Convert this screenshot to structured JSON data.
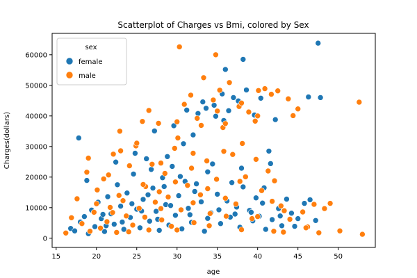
{
  "chart_data": {
    "type": "scatter",
    "title": "Scatterplot of Charges vs Bmi, colored by Sex",
    "xlabel": "age",
    "ylabel": "Charges(dollars)",
    "xlim": [
      14.5,
      54.6
    ],
    "ylim": [
      -3000,
      67000
    ],
    "xticks": [
      15,
      20,
      25,
      30,
      35,
      40,
      45,
      50
    ],
    "yticks": [
      0,
      10000,
      20000,
      30000,
      40000,
      50000,
      60000
    ],
    "legend": {
      "title": "sex",
      "position": "top-left"
    },
    "series": [
      {
        "name": "female",
        "color": "#1f77b4",
        "points": [
          [
            17.8,
            32800
          ],
          [
            47.5,
            63800
          ],
          [
            36.0,
            55200
          ],
          [
            38.2,
            58500
          ],
          [
            46.3,
            46200
          ],
          [
            47.8,
            46000
          ],
          [
            16.8,
            3200
          ],
          [
            17.3,
            2400
          ],
          [
            18.0,
            5300
          ],
          [
            18.5,
            7100
          ],
          [
            19.0,
            1500
          ],
          [
            19.4,
            9200
          ],
          [
            19.8,
            3800
          ],
          [
            20.2,
            11800
          ],
          [
            20.6,
            6400
          ],
          [
            21.0,
            2200
          ],
          [
            21.4,
            13600
          ],
          [
            21.8,
            8000
          ],
          [
            22.2,
            4600
          ],
          [
            22.6,
            17500
          ],
          [
            23.0,
            10500
          ],
          [
            23.4,
            2900
          ],
          [
            23.8,
            14800
          ],
          [
            24.2,
            6800
          ],
          [
            24.6,
            21000
          ],
          [
            25.0,
            9500
          ],
          [
            25.4,
            3400
          ],
          [
            25.8,
            12700
          ],
          [
            26.2,
            26000
          ],
          [
            26.6,
            5600
          ],
          [
            27.0,
            16400
          ],
          [
            27.4,
            8800
          ],
          [
            27.8,
            2600
          ],
          [
            28.2,
            19800
          ],
          [
            28.6,
            11000
          ],
          [
            29.0,
            4300
          ],
          [
            29.4,
            23500
          ],
          [
            29.8,
            7500
          ],
          [
            30.2,
            13900
          ],
          [
            30.6,
            3100
          ],
          [
            31.0,
            18600
          ],
          [
            31.4,
            9800
          ],
          [
            31.8,
            5200
          ],
          [
            32.2,
            15300
          ],
          [
            32.6,
            40800
          ],
          [
            33.0,
            11900
          ],
          [
            33.4,
            2300
          ],
          [
            33.8,
            21700
          ],
          [
            34.2,
            8300
          ],
          [
            34.6,
            43500
          ],
          [
            35.0,
            14400
          ],
          [
            35.4,
            4800
          ],
          [
            35.8,
            38500
          ],
          [
            36.2,
            12200
          ],
          [
            36.6,
            6900
          ],
          [
            37.0,
            46000
          ],
          [
            37.4,
            10200
          ],
          [
            37.8,
            3600
          ],
          [
            38.2,
            16800
          ],
          [
            38.6,
            48500
          ],
          [
            39.0,
            9100
          ],
          [
            39.4,
            5700
          ],
          [
            39.8,
            13200
          ],
          [
            40.2,
            7200
          ],
          [
            40.6,
            11500
          ],
          [
            41.0,
            2900
          ],
          [
            41.4,
            28500
          ],
          [
            41.8,
            6100
          ],
          [
            42.2,
            38800
          ],
          [
            42.6,
            9700
          ],
          [
            43.0,
            4100
          ],
          [
            43.6,
            12800
          ],
          [
            44.2,
            8200
          ],
          [
            45.0,
            6400
          ],
          [
            45.8,
            11400
          ],
          [
            46.5,
            12600
          ],
          [
            47.2,
            5800
          ],
          [
            18.8,
            18900
          ],
          [
            22.4,
            24900
          ],
          [
            24.8,
            27800
          ],
          [
            26.8,
            22500
          ],
          [
            28.8,
            26700
          ],
          [
            30.8,
            30900
          ],
          [
            32.0,
            33800
          ],
          [
            33.6,
            42500
          ],
          [
            34.8,
            39900
          ],
          [
            36.4,
            41700
          ],
          [
            38.0,
            22900
          ],
          [
            39.6,
            40300
          ],
          [
            41.6,
            24400
          ],
          [
            27.2,
            35100
          ],
          [
            29.6,
            36800
          ],
          [
            31.2,
            41900
          ],
          [
            33.2,
            44600
          ],
          [
            35.6,
            47200
          ],
          [
            37.6,
            44900
          ],
          [
            40.4,
            45800
          ],
          [
            20.8,
            7800
          ],
          [
            23.2,
            5300
          ],
          [
            25.6,
            8900
          ],
          [
            27.6,
            6200
          ],
          [
            29.2,
            10700
          ],
          [
            31.6,
            7700
          ],
          [
            33.8,
            6500
          ],
          [
            35.2,
            9300
          ],
          [
            37.2,
            7900
          ],
          [
            39.2,
            8500
          ],
          [
            42.8,
            7300
          ],
          [
            44.6,
            3900
          ],
          [
            21.2,
            4100
          ],
          [
            24.4,
            11300
          ],
          [
            26.4,
            14200
          ],
          [
            28.4,
            16900
          ],
          [
            30.4,
            20200
          ],
          [
            32.4,
            17800
          ],
          [
            34.4,
            24300
          ],
          [
            36.8,
            18200
          ],
          [
            40.8,
            16500
          ]
        ]
      },
      {
        "name": "male",
        "color": "#ff7f0e",
        "points": [
          [
            30.3,
            62600
          ],
          [
            34.8,
            60000
          ],
          [
            52.6,
            44500
          ],
          [
            53.0,
            1300
          ],
          [
            50.2,
            2400
          ],
          [
            49.0,
            11400
          ],
          [
            16.2,
            1700
          ],
          [
            16.9,
            6700
          ],
          [
            17.6,
            12900
          ],
          [
            18.2,
            4800
          ],
          [
            18.8,
            21600
          ],
          [
            19.2,
            2300
          ],
          [
            19.7,
            8500
          ],
          [
            20.1,
            15800
          ],
          [
            20.5,
            3300
          ],
          [
            20.9,
            19400
          ],
          [
            21.3,
            5400
          ],
          [
            21.7,
            10100
          ],
          [
            22.1,
            27500
          ],
          [
            22.5,
            1900
          ],
          [
            22.9,
            35000
          ],
          [
            23.3,
            12300
          ],
          [
            23.7,
            7300
          ],
          [
            24.1,
            23700
          ],
          [
            24.5,
            4300
          ],
          [
            24.9,
            30200
          ],
          [
            25.3,
            9800
          ],
          [
            25.7,
            38200
          ],
          [
            26.1,
            16900
          ],
          [
            26.5,
            2700
          ],
          [
            26.9,
            24200
          ],
          [
            27.3,
            11800
          ],
          [
            27.7,
            37600
          ],
          [
            28.1,
            6000
          ],
          [
            28.5,
            21200
          ],
          [
            28.9,
            13500
          ],
          [
            29.3,
            3900
          ],
          [
            29.7,
            29400
          ],
          [
            30.1,
            32800
          ],
          [
            30.5,
            9300
          ],
          [
            30.9,
            43800
          ],
          [
            31.3,
            17300
          ],
          [
            31.7,
            46800
          ],
          [
            32.1,
            5100
          ],
          [
            32.5,
            39200
          ],
          [
            32.9,
            14200
          ],
          [
            33.3,
            52500
          ],
          [
            33.7,
            25300
          ],
          [
            34.1,
            8100
          ],
          [
            34.5,
            45200
          ],
          [
            34.9,
            19300
          ],
          [
            35.3,
            48400
          ],
          [
            35.7,
            36200
          ],
          [
            36.1,
            7200
          ],
          [
            36.5,
            50900
          ],
          [
            36.9,
            27400
          ],
          [
            37.3,
            11200
          ],
          [
            37.7,
            43100
          ],
          [
            38.1,
            31000
          ],
          [
            38.5,
            20100
          ],
          [
            38.9,
            41300
          ],
          [
            39.3,
            6400
          ],
          [
            39.7,
            38300
          ],
          [
            40.1,
            48300
          ],
          [
            40.5,
            15600
          ],
          [
            40.9,
            48900
          ],
          [
            41.3,
            22000
          ],
          [
            41.7,
            47100
          ],
          [
            42.1,
            18800
          ],
          [
            42.5,
            48200
          ],
          [
            42.9,
            10600
          ],
          [
            43.3,
            9000
          ],
          [
            43.8,
            45600
          ],
          [
            44.4,
            40100
          ],
          [
            45.0,
            42300
          ],
          [
            45.6,
            8600
          ],
          [
            46.2,
            3700
          ],
          [
            47.0,
            11100
          ],
          [
            47.6,
            1800
          ],
          [
            48.3,
            9700
          ],
          [
            19.0,
            26200
          ],
          [
            21.5,
            20700
          ],
          [
            23.0,
            28600
          ],
          [
            25.0,
            31100
          ],
          [
            26.5,
            41800
          ],
          [
            28.0,
            24600
          ],
          [
            30.0,
            38100
          ],
          [
            32.0,
            27800
          ],
          [
            33.0,
            36900
          ],
          [
            35.0,
            41600
          ],
          [
            36.0,
            37500
          ],
          [
            38.0,
            44200
          ],
          [
            40.0,
            40000
          ],
          [
            22.0,
            8400
          ],
          [
            24.0,
            2100
          ],
          [
            26.0,
            6900
          ],
          [
            28.0,
            9700
          ],
          [
            30.0,
            2700
          ],
          [
            32.0,
            11600
          ],
          [
            34.0,
            4100
          ],
          [
            36.0,
            13100
          ],
          [
            38.0,
            2800
          ],
          [
            40.0,
            7100
          ],
          [
            42.0,
            2300
          ],
          [
            44.0,
            6200
          ],
          [
            46.0,
            3400
          ],
          [
            20.0,
            11300
          ],
          [
            22.8,
            14000
          ],
          [
            25.8,
            17600
          ],
          [
            27.8,
            15200
          ],
          [
            29.8,
            18400
          ],
          [
            31.8,
            22900
          ],
          [
            33.8,
            16200
          ],
          [
            35.8,
            28400
          ],
          [
            37.8,
            18600
          ],
          [
            39.8,
            25800
          ],
          [
            41.8,
            12100
          ],
          [
            43.2,
            2000
          ]
        ]
      }
    ]
  }
}
